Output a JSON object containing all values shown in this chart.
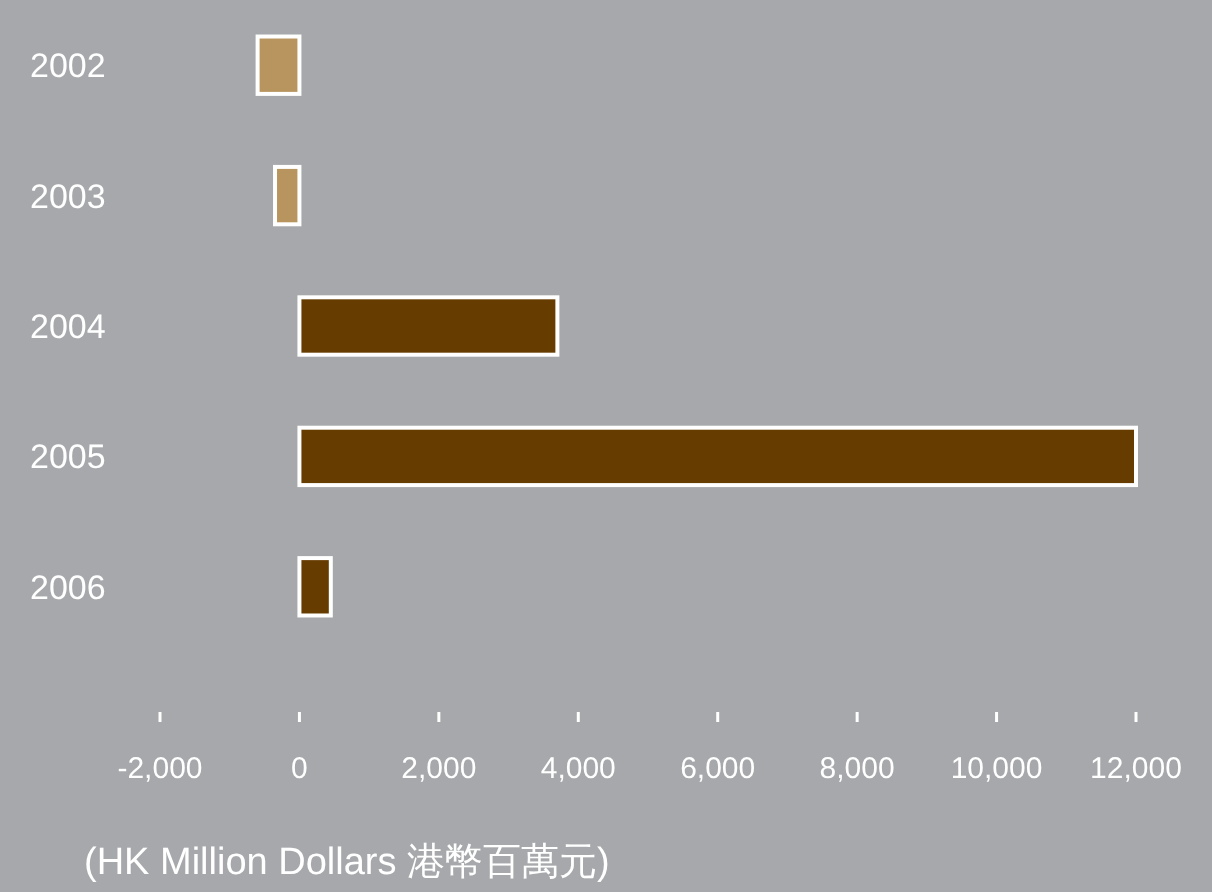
{
  "chart_data": {
    "type": "bar",
    "orientation": "horizontal",
    "categories": [
      "2002",
      "2003",
      "2004",
      "2005",
      "2006"
    ],
    "values": [
      -600,
      -350,
      3700,
      12000,
      450
    ],
    "colors": [
      "#b8955f",
      "#b8955f",
      "#663c00",
      "#663c00",
      "#663c00"
    ],
    "xlim": [
      -2000,
      12000
    ],
    "xticks": [
      {
        "value": -2000,
        "label": "-2,000"
      },
      0,
      {
        "value": 2000,
        "label": "2,000"
      },
      {
        "value": 4000,
        "label": "4,000"
      },
      {
        "value": 6000,
        "label": "6,000"
      },
      {
        "value": 8000,
        "label": "8,000"
      },
      {
        "value": 10000,
        "label": "10,000"
      },
      {
        "value": 12000,
        "label": "12,000"
      }
    ],
    "xlabel": "(HK Million Dollars 港幣百萬元)",
    "grid": false
  }
}
